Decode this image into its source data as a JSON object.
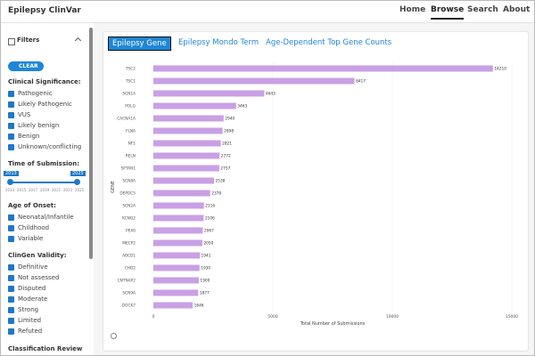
{
  "header": {
    "title": "Epilepsy ClinVar",
    "nav": [
      "Home",
      "Browse",
      "Search",
      "About"
    ]
  },
  "sidebar": {
    "title": "Filters",
    "clear": "CLEAR",
    "sections": [
      {
        "title": "Clinical Significance:",
        "items": [
          "Pathogenic",
          "Likely Pathogenic",
          "VUS",
          "Likely benign",
          "Benign",
          "Unknown/conflicting"
        ]
      },
      {
        "title": "Time of Submission:",
        "slider_min": "2013",
        "slider_max": "2025",
        "ticks": [
          "2013",
          "2015",
          "2017",
          "2019",
          "2021",
          "2023",
          "2025"
        ]
      },
      {
        "title": "Age of Onset:",
        "items": [
          "Neonatal/Infantile",
          "Childhood",
          "Variable"
        ]
      },
      {
        "title": "ClinGen Validity:",
        "items": [
          "Definitive",
          "Not assessed",
          "Disputed",
          "Moderate",
          "Strong",
          "Limited",
          "Refuted"
        ]
      },
      {
        "title": "Classification Review Status:"
      }
    ]
  },
  "tabs": [
    "Epilepsy Gene",
    "Epilepsy Mondo Term",
    "Age-Dependent Top Gene Counts"
  ],
  "chart_data": {
    "type": "barh",
    "x_label": "Total Number of Submissions",
    "y_label": "GENE",
    "categories": [
      "TSC2",
      "TSC1",
      "SCN1A",
      "POLG",
      "CACNA1A",
      "FLNA",
      "NF1",
      "RELN",
      "SPTAN1",
      "SCN8A",
      "DEPDC5",
      "SCN2A",
      "KCNQ2",
      "PEX6",
      "MECP2",
      "ABCD1",
      "CHD2",
      "CNTNAP2",
      "SCN9A",
      "DOCK7"
    ],
    "values": [
      14210,
      8417,
      4643,
      3463,
      2940,
      2898,
      2821,
      2772,
      2757,
      2538,
      2378,
      2116,
      2106,
      2067,
      2050,
      1941,
      1930,
      1900,
      1877,
      1646
    ],
    "color": "#c9a0e4",
    "xlim": [
      0,
      15000
    ],
    "xticks": [
      0,
      5000,
      10000,
      15000
    ],
    "grid": true
  }
}
